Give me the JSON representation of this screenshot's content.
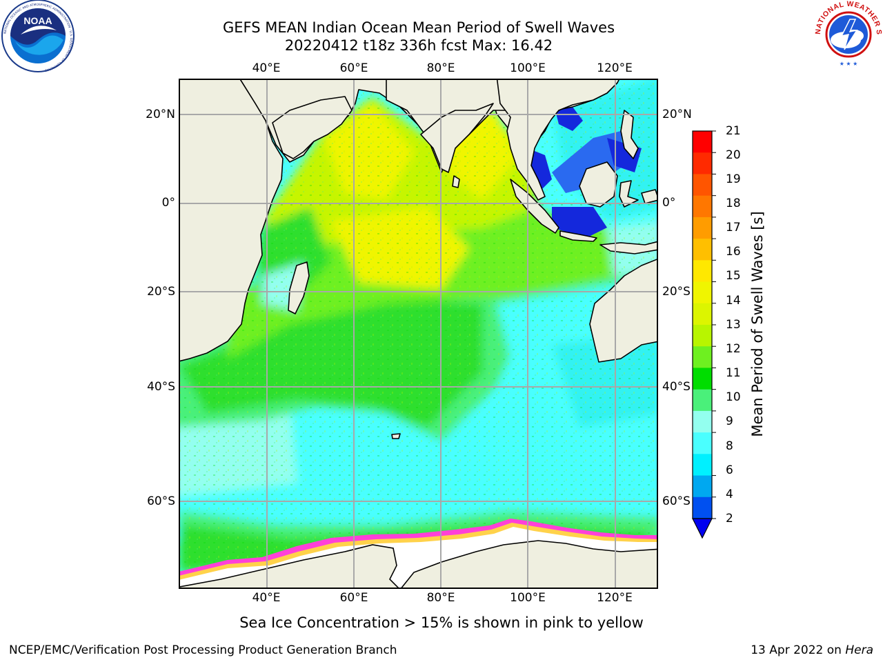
{
  "title": {
    "line1": "GEFS MEAN Indian Ocean Mean Period of Swell Waves",
    "line2": "20220412 t18z 336h fcst   Max: 16.42"
  },
  "map": {
    "lon_labels": [
      "40°E",
      "60°E",
      "80°E",
      "100°E",
      "120°E"
    ],
    "lat_labels": [
      "20°N",
      "0°",
      "20°S",
      "40°S",
      "60°S"
    ],
    "ocean_palette": {
      "blue": "#1428dc",
      "cyan": "#30f2f2",
      "light_cyan": "#4affff",
      "aqua": "#93ffef",
      "mint": "#4af07a",
      "green": "#2fdf2f",
      "lime": "#6ef020",
      "yellow_green": "#c6f500",
      "yellow": "#f0f500",
      "ice_pink": "#ff40d8",
      "ice_yellow": "#ffd24a"
    },
    "land_color": "#efefe0"
  },
  "colorbar": {
    "label": "Mean Period of Swell Waves [s]",
    "ticks": [
      "21",
      "20",
      "19",
      "18",
      "17",
      "16",
      "15",
      "14",
      "13",
      "12",
      "11",
      "10",
      "9",
      "8",
      "6",
      "4",
      "2"
    ],
    "colors_top_to_bottom": [
      "#ff0000",
      "#ff2a00",
      "#ff5500",
      "#ff7700",
      "#ff9c00",
      "#ffbf00",
      "#ffe800",
      "#f0f500",
      "#dcf500",
      "#b8f500",
      "#6ef020",
      "#00dd00",
      "#4af07a",
      "#93ffef",
      "#4affff",
      "#00f0ff",
      "#00a8f0",
      "#0050f0"
    ],
    "extend_color": "#0000f0"
  },
  "footnote": "Sea Ice Concentration > 15% is shown in pink to yellow",
  "footer": {
    "credit": "NCEP/EMC/Verification Post Processing Product Generation Branch",
    "date": "13 Apr 2022 on",
    "machine": "Hera"
  },
  "logos": {
    "noaa": {
      "icon": "noaa-logo",
      "text": "NOAA",
      "ring": "NATIONAL OCEANIC AND ATMOSPHERIC ADMINISTRATION · U.S. DEPARTMENT OF COMMERCE"
    },
    "nws": {
      "icon": "nws-logo",
      "ring": "NATIONAL WEATHER SERVICE"
    }
  }
}
